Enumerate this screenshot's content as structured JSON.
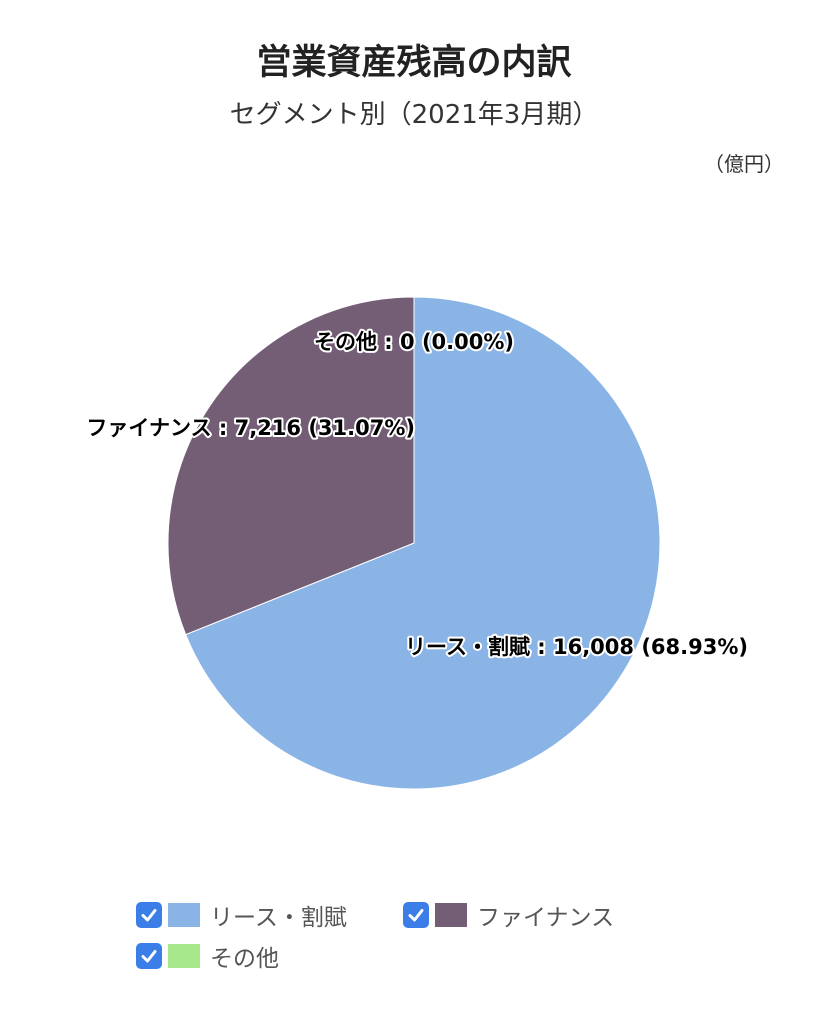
{
  "header": {
    "title": "営業資産残高の内訳",
    "subtitle": "セグメント別（2021年3月期）",
    "unit": "（億円）"
  },
  "chart_data": {
    "type": "pie",
    "title": "営業資産残高の内訳",
    "subtitle": "セグメント別（2021年3月期）",
    "unit": "（億円）",
    "slices": [
      {
        "name": "リース・割賦",
        "value": 16008,
        "value_label": "16,008",
        "percent_label": "68.93%",
        "color": "#8ab4e6"
      },
      {
        "name": "ファイナンス",
        "value": 7216,
        "value_label": "7,216",
        "percent_label": "31.07%",
        "color": "#735e76"
      },
      {
        "name": "その他",
        "value": 0,
        "value_label": "0",
        "percent_label": "0.00%",
        "color": "#a8e88c"
      }
    ],
    "data_labels": [
      "リース・割賦 : 16,008 (68.93%)",
      "ファイナンス : 7,216 (31.07%)",
      "その他 : 0 (0.00%)"
    ],
    "legend_position": "bottom",
    "start_angle": "12 o'clock, clockwise"
  },
  "legend": {
    "items": [
      {
        "label": "リース・割賦",
        "color": "#8ab4e6",
        "checked": true
      },
      {
        "label": "ファイナンス",
        "color": "#735e76",
        "checked": true
      },
      {
        "label": "その他",
        "color": "#a8e88c",
        "checked": true
      }
    ],
    "check_color": "#3b7ee8"
  }
}
